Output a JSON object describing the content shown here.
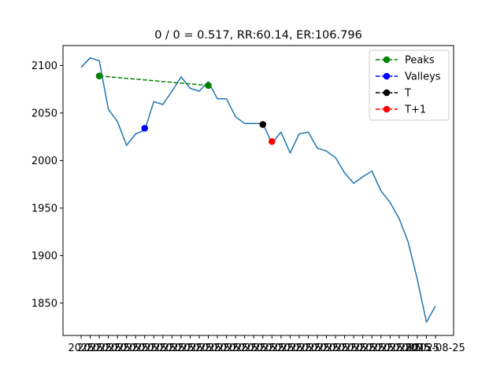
{
  "chart_data": {
    "type": "line",
    "title": "0 / 0 = 0.517, RR:60.14, ER:106.796",
    "xlabel": "",
    "ylabel": "",
    "ylim": [
      1816,
      2121
    ],
    "yticks": [
      1850,
      1900,
      1950,
      2000,
      2050,
      2100
    ],
    "x_tick_prefix": "2025",
    "x_tick_last": "2015-08-25",
    "grid": false,
    "legend_position": "upper right",
    "series": [
      {
        "name": "price",
        "color": "#1f77b4",
        "values": [
          2098,
          2108,
          2105,
          2054,
          2041,
          2016,
          2028,
          2032,
          2062,
          2059,
          2073,
          2088,
          2076,
          2073,
          2083,
          2065,
          2065,
          2046,
          2039,
          2039,
          2039,
          2018,
          2030,
          2008,
          2028,
          2030,
          2013,
          2010,
          2003,
          1987,
          1976,
          1983,
          1989,
          1968,
          1956,
          1939,
          1914,
          1875,
          1830,
          1847
        ]
      }
    ],
    "markers": [
      {
        "name": "Peaks",
        "color": "#008000",
        "points": [
          [
            2,
            2089
          ],
          [
            14,
            2079
          ]
        ],
        "dashed_line": true
      },
      {
        "name": "Valleys",
        "color": "#0000ff",
        "points": [
          [
            7,
            2034
          ]
        ],
        "dashed_line": false
      },
      {
        "name": "T",
        "color": "#000000",
        "points": [
          [
            20,
            2038
          ]
        ],
        "dashed_line": false
      },
      {
        "name": "T+1",
        "color": "#ff0000",
        "points": [
          [
            21,
            2020
          ]
        ],
        "dashed_line": false
      }
    ],
    "legend": [
      {
        "label": "Peaks",
        "color": "#008000"
      },
      {
        "label": "Valleys",
        "color": "#0000ff"
      },
      {
        "label": "T",
        "color": "#000000"
      },
      {
        "label": "T+1",
        "color": "#ff0000"
      }
    ]
  }
}
